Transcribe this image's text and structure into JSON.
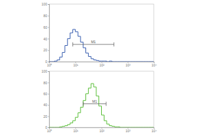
{
  "chart_data": [
    {
      "type": "histogram",
      "color": "#3a5fb0",
      "log": "x",
      "bins": [
        1,
        1.26,
        1.58,
        2,
        2.51,
        3.16,
        3.98,
        5.01,
        6.31,
        7.94,
        10,
        12.6,
        15.8,
        20,
        25.1,
        31.6,
        39.8,
        50.1,
        63.1,
        79.4,
        100,
        126,
        158,
        200,
        251,
        316,
        398,
        501,
        631,
        794,
        1000,
        1259,
        1585,
        1995,
        2512,
        3162,
        3981,
        5012,
        6310,
        7943,
        10000
      ],
      "counts": [
        0,
        0,
        1,
        3,
        8,
        16,
        28,
        40,
        50,
        56,
        52,
        44,
        34,
        24,
        15,
        9,
        5,
        3,
        2,
        1,
        1,
        1,
        0,
        1,
        0,
        0,
        0,
        0,
        0,
        0,
        0,
        0,
        0,
        0,
        0,
        0,
        0,
        0,
        0,
        0
      ],
      "xlim": [
        1,
        10000
      ],
      "xticks": [
        {
          "value": 1,
          "label": "10⁰"
        },
        {
          "value": 10,
          "label": "10¹"
        },
        {
          "value": 100,
          "label": "10²"
        },
        {
          "value": 1000,
          "label": "10³"
        },
        {
          "value": 10000,
          "label": "10⁴"
        }
      ],
      "ylim": [
        0,
        100
      ],
      "yticks": [
        0,
        20,
        40,
        60,
        80,
        100
      ],
      "annotations": [
        {
          "text": "M1",
          "x": [
            8,
            300
          ],
          "y": 30
        }
      ]
    },
    {
      "type": "histogram",
      "color": "#5cbf3a",
      "log": "x",
      "bins": [
        1,
        1.26,
        1.58,
        2,
        2.51,
        3.16,
        3.98,
        5.01,
        6.31,
        7.94,
        10,
        12.6,
        15.8,
        20,
        25.1,
        31.6,
        39.8,
        50.1,
        63.1,
        79.4,
        100,
        126,
        158,
        200,
        251,
        316,
        398,
        501,
        631,
        794,
        1000,
        1259,
        1585,
        1995,
        2512,
        3162,
        3981,
        5012,
        6310,
        7943,
        10000
      ],
      "counts": [
        0,
        0,
        0,
        0,
        1,
        2,
        3,
        5,
        8,
        12,
        18,
        26,
        36,
        48,
        60,
        70,
        78,
        72,
        56,
        38,
        22,
        12,
        6,
        3,
        2,
        1,
        1,
        0,
        0,
        0,
        0,
        0,
        0,
        0,
        0,
        0,
        0,
        0,
        0,
        0
      ],
      "xlim": [
        1,
        10000
      ],
      "xticks": [
        {
          "value": 1,
          "label": "10⁰"
        },
        {
          "value": 10,
          "label": "10¹"
        },
        {
          "value": 100,
          "label": "10²"
        },
        {
          "value": 1000,
          "label": "10³"
        },
        {
          "value": 10000,
          "label": "10⁴"
        }
      ],
      "ylim": [
        0,
        100
      ],
      "yticks": [
        0,
        20,
        40,
        60,
        80,
        100
      ],
      "annotations": [
        {
          "text": "M1",
          "x": [
            20,
            150
          ],
          "y": 42
        }
      ]
    }
  ]
}
